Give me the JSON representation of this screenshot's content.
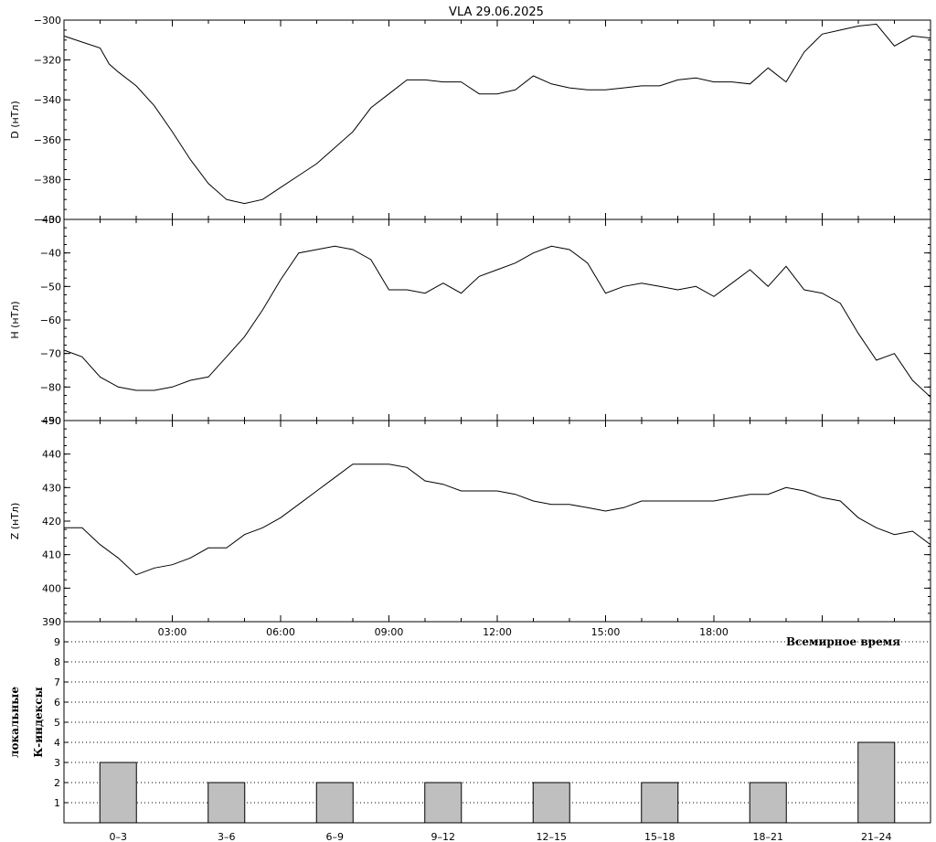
{
  "chart_data": [
    {
      "type": "line",
      "panel": "D",
      "title": "VLA   29.06.2025",
      "ylabel": "D (нТл)",
      "ylim": [
        -400,
        -300
      ],
      "yticks": [
        -400,
        -380,
        -360,
        -340,
        -320,
        -300
      ],
      "xlim": [
        0,
        24
      ],
      "series": [
        {
          "x": [
            0,
            0.5,
            1,
            1.25,
            1.5,
            2,
            2.5,
            3,
            3.5,
            4,
            4.5,
            5,
            5.5,
            6,
            6.5,
            7,
            7.5,
            8,
            8.5,
            9,
            9.5,
            10,
            10.5,
            11,
            11.5,
            12,
            12.5,
            13,
            13.5,
            14,
            14.5,
            15,
            15.5,
            16,
            16.5,
            17,
            17.5,
            18,
            18.5,
            19,
            19.5,
            20,
            20.5,
            21,
            21.5,
            22,
            22.5,
            23,
            23.5,
            24
          ],
          "values": [
            -308,
            -311,
            -314,
            -322,
            -326,
            -333,
            -343,
            -356,
            -370,
            -382,
            -390,
            -392,
            -390,
            -384,
            -378,
            -372,
            -364,
            -356,
            -344,
            -337,
            -330,
            -330,
            -331,
            -331,
            -337,
            -337,
            -335,
            -328,
            -332,
            -334,
            -335,
            -335,
            -334,
            -333,
            -333,
            -330,
            -329,
            -331,
            -331,
            -332,
            -324,
            -331,
            -316,
            -307,
            -305,
            -303,
            -302,
            -313,
            -308,
            -309
          ]
        }
      ]
    },
    {
      "type": "line",
      "panel": "H",
      "ylabel": "H (нТл)",
      "ylim": [
        -90,
        -30
      ],
      "yticks": [
        -90,
        -80,
        -70,
        -60,
        -50,
        -40,
        -30
      ],
      "xlim": [
        0,
        24
      ],
      "series": [
        {
          "x": [
            0,
            0.5,
            1,
            1.5,
            2,
            2.5,
            3,
            3.5,
            4,
            4.5,
            5,
            5.5,
            6,
            6.5,
            7,
            7.5,
            8,
            8.5,
            9,
            9.5,
            10,
            10.5,
            11,
            11.5,
            12,
            12.5,
            13,
            13.5,
            14,
            14.5,
            15,
            15.5,
            16,
            16.5,
            17,
            17.5,
            18,
            18.5,
            19,
            19.5,
            20,
            20.5,
            21,
            21.5,
            22,
            22.5,
            23,
            23.5,
            24
          ],
          "values": [
            -69,
            -71,
            -77,
            -80,
            -81,
            -81,
            -80,
            -78,
            -77,
            -71,
            -65,
            -57,
            -48,
            -40,
            -39,
            -38,
            -39,
            -42,
            -51,
            -51,
            -52,
            -49,
            -52,
            -47,
            -45,
            -43,
            -40,
            -38,
            -39,
            -43,
            -52,
            -50,
            -49,
            -50,
            -51,
            -50,
            -53,
            -49,
            -45,
            -50,
            -44,
            -51,
            -52,
            -55,
            -64,
            -72,
            -70,
            -78,
            -83
          ]
        }
      ]
    },
    {
      "type": "line",
      "panel": "Z",
      "ylabel": "Z (нТл)",
      "ylim": [
        390,
        450
      ],
      "yticks": [
        390,
        400,
        410,
        420,
        430,
        440,
        450
      ],
      "xlim": [
        0,
        24
      ],
      "xticks": [
        "03:00",
        "06:00",
        "09:00",
        "12:00",
        "15:00",
        "18:00"
      ],
      "xtick_hours": [
        3,
        6,
        9,
        12,
        15,
        18
      ],
      "xlabel": "Всемирное время",
      "series": [
        {
          "x": [
            0,
            0.5,
            1,
            1.5,
            2,
            2.5,
            3,
            3.5,
            4,
            4.5,
            5,
            5.5,
            6,
            6.5,
            7,
            7.5,
            8,
            8.5,
            9,
            9.5,
            10,
            10.5,
            11,
            11.5,
            12,
            12.5,
            13,
            13.5,
            14,
            14.5,
            15,
            15.5,
            16,
            16.5,
            17,
            17.5,
            18,
            18.5,
            19,
            19.5,
            20,
            20.5,
            21,
            21.5,
            22,
            22.5,
            23,
            23.5,
            24
          ],
          "values": [
            418,
            418,
            413,
            409,
            404,
            406,
            407,
            409,
            412,
            412,
            416,
            418,
            421,
            425,
            429,
            433,
            437,
            437,
            437,
            436,
            432,
            431,
            429,
            429,
            429,
            428,
            426,
            425,
            425,
            424,
            423,
            424,
            426,
            426,
            426,
            426,
            426,
            427,
            428,
            428,
            430,
            429,
            427,
            426,
            421,
            418,
            416,
            417,
            413
          ]
        }
      ]
    },
    {
      "type": "bar",
      "panel": "K",
      "ylabel": "локальные К-индексы",
      "ylim": [
        0,
        10
      ],
      "yticks": [
        1,
        2,
        3,
        4,
        5,
        6,
        7,
        8,
        9
      ],
      "categories": [
        "0–3",
        "3–6",
        "6–9",
        "9–12",
        "12–15",
        "15–18",
        "18–21",
        "21–24"
      ],
      "values": [
        3,
        2,
        2,
        2,
        2,
        2,
        2,
        4
      ],
      "grid": true
    }
  ]
}
